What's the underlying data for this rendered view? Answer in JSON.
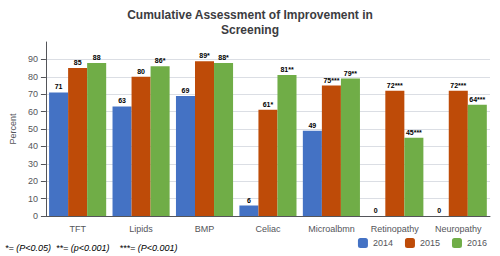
{
  "chart_data": {
    "type": "bar",
    "title": "Cumulative Assessment of Improvement in\nScreening",
    "categories": [
      "TFT",
      "Lipids",
      "BMP",
      "Celiac",
      "Microalbmn",
      "Retinopathy",
      "Neuropathy"
    ],
    "series": [
      {
        "name": "2014",
        "color": "#4472C4",
        "values": [
          71,
          63,
          69,
          6,
          49,
          0,
          0
        ],
        "value_labels": [
          "71",
          "63",
          "69",
          "6",
          "49",
          "0",
          "0"
        ]
      },
      {
        "name": "2015",
        "color": "#BE4B08",
        "values": [
          85,
          80,
          89,
          61,
          75,
          72,
          72
        ],
        "value_labels": [
          "85",
          "80",
          "89*",
          "61*",
          "75***",
          "72***",
          "72***"
        ]
      },
      {
        "name": "2016",
        "color": "#70AD47",
        "values": [
          88,
          86,
          88,
          81,
          79,
          45,
          64
        ],
        "value_labels": [
          "88",
          "86*",
          "88*",
          "81**",
          "79**",
          "45***",
          "64***"
        ]
      }
    ],
    "ylabel": "Percent",
    "ylim": [
      0,
      100
    ],
    "yticks": [
      0,
      10,
      20,
      30,
      40,
      50,
      60,
      70,
      80,
      90
    ],
    "grid": true,
    "data_labels": true,
    "legend": "lower right",
    "annotations": [
      "*= (P<0.05)  **= (p<0.001)    ***= (P<0.001)"
    ]
  }
}
